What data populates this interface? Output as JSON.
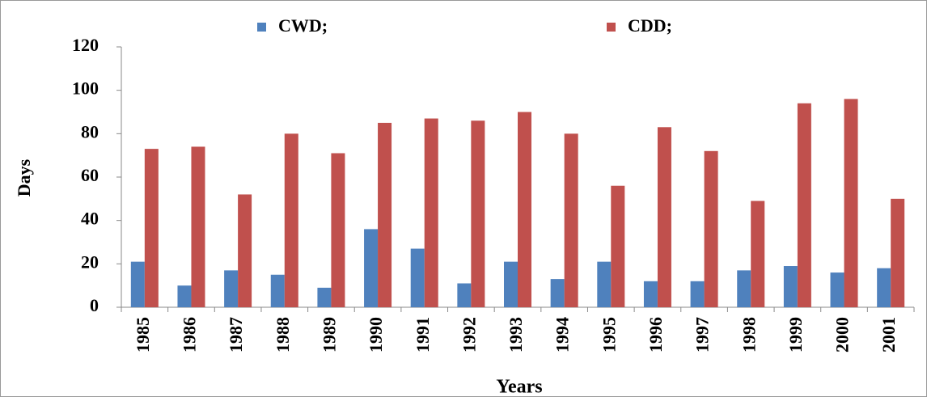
{
  "chart_data": {
    "type": "bar",
    "x_label": "Years",
    "y_label": "Days",
    "categories": [
      "1985",
      "1986",
      "1987",
      "1988",
      "1989",
      "1990",
      "1991",
      "1992",
      "1993",
      "1994",
      "1995",
      "1996",
      "1997",
      "1998",
      "1999",
      "2000",
      "2001"
    ],
    "series": [
      {
        "name": "CWD;",
        "color": "#4f81bd",
        "values": [
          21,
          10,
          17,
          15,
          9,
          36,
          27,
          11,
          21,
          13,
          21,
          12,
          12,
          17,
          19,
          16,
          18
        ]
      },
      {
        "name": "CDD;",
        "color": "#c0504d",
        "values": [
          73,
          74,
          52,
          80,
          71,
          85,
          87,
          86,
          90,
          80,
          56,
          83,
          72,
          49,
          94,
          96,
          50
        ]
      }
    ],
    "ylim": [
      0,
      120
    ],
    "yticks": [
      0,
      20,
      40,
      60,
      80,
      100,
      120
    ],
    "grid": false
  }
}
